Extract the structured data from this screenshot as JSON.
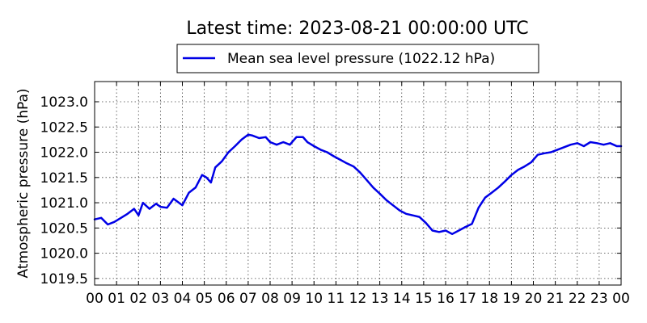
{
  "chart_data": {
    "type": "line",
    "title": "Latest time: 2023-08-21 00:00:00 UTC",
    "xlabel": "",
    "ylabel": "Atmospheric pressure (hPa)",
    "x_tick_labels": [
      "00",
      "01",
      "02",
      "03",
      "04",
      "05",
      "06",
      "07",
      "08",
      "09",
      "10",
      "11",
      "12",
      "13",
      "14",
      "15",
      "16",
      "17",
      "18",
      "19",
      "20",
      "21",
      "22",
      "23",
      "00"
    ],
    "xlim": [
      0,
      24
    ],
    "ylim": [
      1019.37,
      1023.4
    ],
    "y_ticks": [
      "1019.5",
      "1020.0",
      "1020.5",
      "1021.0",
      "1021.5",
      "1022.0",
      "1022.5",
      "1023.0"
    ],
    "grid": true,
    "legend_position": "top-center",
    "series": [
      {
        "name": "Mean sea level pressure (1022.12 hPa)",
        "color": "#0000e6",
        "x": [
          0,
          0.3,
          0.6,
          0.9,
          1.2,
          1.5,
          1.8,
          2.0,
          2.2,
          2.5,
          2.8,
          3.0,
          3.3,
          3.6,
          4.0,
          4.3,
          4.6,
          4.9,
          5.1,
          5.3,
          5.5,
          5.8,
          6.1,
          6.4,
          6.7,
          7.0,
          7.2,
          7.5,
          7.8,
          8.0,
          8.3,
          8.6,
          8.9,
          9.2,
          9.5,
          9.7,
          10.0,
          10.3,
          10.6,
          10.9,
          11.2,
          11.5,
          11.8,
          12.1,
          12.4,
          12.7,
          13.0,
          13.3,
          13.6,
          13.9,
          14.2,
          14.5,
          14.8,
          15.1,
          15.4,
          15.7,
          16.0,
          16.3,
          16.6,
          16.9,
          17.2,
          17.5,
          17.8,
          18.1,
          18.4,
          18.7,
          19.0,
          19.3,
          19.6,
          19.9,
          20.2,
          20.5,
          20.8,
          21.1,
          21.4,
          21.7,
          22.0,
          22.3,
          22.6,
          22.9,
          23.2,
          23.5,
          23.8,
          24.0
        ],
        "values": [
          1020.67,
          1020.7,
          1020.57,
          1020.62,
          1020.7,
          1020.78,
          1020.88,
          1020.75,
          1021.0,
          1020.88,
          1020.98,
          1020.92,
          1020.9,
          1021.08,
          1020.95,
          1021.2,
          1021.3,
          1021.55,
          1021.5,
          1021.4,
          1021.7,
          1021.82,
          1022.0,
          1022.12,
          1022.25,
          1022.35,
          1022.33,
          1022.28,
          1022.3,
          1022.2,
          1022.15,
          1022.2,
          1022.15,
          1022.3,
          1022.3,
          1022.2,
          1022.12,
          1022.05,
          1022.0,
          1021.92,
          1021.85,
          1021.78,
          1021.72,
          1021.6,
          1021.45,
          1021.3,
          1021.18,
          1021.05,
          1020.95,
          1020.85,
          1020.78,
          1020.75,
          1020.72,
          1020.6,
          1020.45,
          1020.42,
          1020.45,
          1020.38,
          1020.45,
          1020.52,
          1020.58,
          1020.9,
          1021.1,
          1021.2,
          1021.3,
          1021.42,
          1021.55,
          1021.65,
          1021.72,
          1021.8,
          1021.95,
          1021.98,
          1022.0,
          1022.05,
          1022.1,
          1022.15,
          1022.18,
          1022.12,
          1022.2,
          1022.18,
          1022.15,
          1022.18,
          1022.12,
          1022.12
        ]
      }
    ]
  }
}
